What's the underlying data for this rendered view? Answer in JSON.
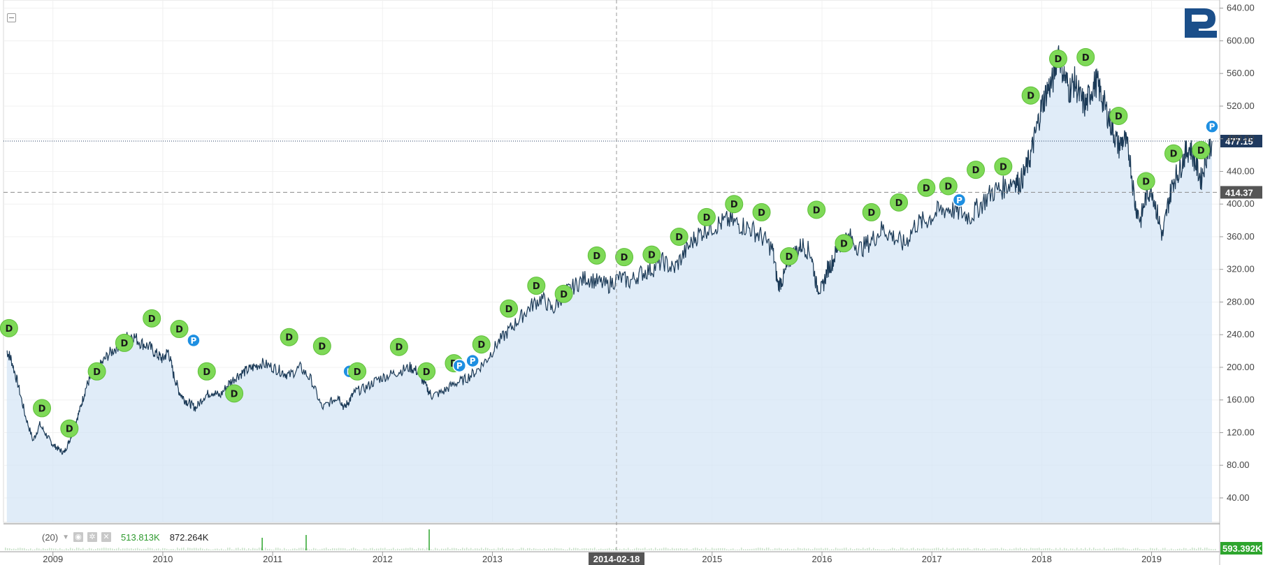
{
  "chart_data": {
    "type": "area",
    "title": "",
    "xlabel": "",
    "ylabel": "",
    "ylim": [
      0,
      650
    ],
    "x_ticks": [
      "2009",
      "2010",
      "2011",
      "2012",
      "2013",
      "2014-02-18",
      "2015",
      "2016",
      "2017",
      "2018",
      "2019"
    ],
    "y_ticks": [
      "40.00",
      "80.00",
      "120.00",
      "160.00",
      "200.00",
      "240.00",
      "280.00",
      "320.00",
      "360.00",
      "400.00",
      "440.00",
      "480.00",
      "520.00",
      "560.00",
      "600.00",
      "640.00"
    ],
    "series": [
      {
        "x": [
          2008.58,
          2008.62,
          2008.68,
          2008.75,
          2008.82,
          2008.88,
          2008.95,
          2009.0,
          2009.05,
          2009.1,
          2009.15,
          2009.2,
          2009.25,
          2009.3,
          2009.35,
          2009.42,
          2009.5,
          2009.58,
          2009.65,
          2009.72,
          2009.8,
          2009.88,
          2009.95,
          2010.0,
          2010.05,
          2010.1,
          2010.15,
          2010.2,
          2010.25,
          2010.3,
          2010.38,
          2010.45,
          2010.52,
          2010.6,
          2010.68,
          2010.75,
          2010.82,
          2010.9,
          2011.0,
          2011.08,
          2011.15,
          2011.25,
          2011.35,
          2011.45,
          2011.55,
          2011.6,
          2011.65,
          2011.7,
          2011.75,
          2011.85,
          2011.95,
          2012.05,
          2012.15,
          2012.25,
          2012.32,
          2012.4,
          2012.45,
          2012.55,
          2012.65,
          2012.75,
          2012.85,
          2012.95,
          2013.05,
          2013.15,
          2013.25,
          2013.35,
          2013.45,
          2013.55,
          2013.65,
          2013.75,
          2013.85,
          2013.95,
          2014.05,
          2014.15,
          2014.25,
          2014.35,
          2014.45,
          2014.55,
          2014.65,
          2014.75,
          2014.85,
          2014.95,
          2015.05,
          2015.15,
          2015.25,
          2015.35,
          2015.45,
          2015.55,
          2015.6,
          2015.65,
          2015.7,
          2015.75,
          2015.82,
          2015.9,
          2015.95,
          2016.0,
          2016.05,
          2016.1,
          2016.15,
          2016.25,
          2016.35,
          2016.45,
          2016.55,
          2016.65,
          2016.75,
          2016.85,
          2016.95,
          2017.05,
          2017.15,
          2017.25,
          2017.35,
          2017.45,
          2017.55,
          2017.65,
          2017.75,
          2017.8,
          2017.85,
          2017.9,
          2017.95,
          2018.0,
          2018.05,
          2018.1,
          2018.15,
          2018.2,
          2018.25,
          2018.3,
          2018.35,
          2018.4,
          2018.45,
          2018.5,
          2018.55,
          2018.6,
          2018.65,
          2018.7,
          2018.75,
          2018.8,
          2018.85,
          2018.9,
          2018.95,
          2019.0,
          2019.05,
          2019.1,
          2019.15,
          2019.2,
          2019.25,
          2019.3,
          2019.35,
          2019.4,
          2019.45,
          2019.5,
          2019.55
        ],
        "y": [
          220,
          210,
          180,
          140,
          110,
          130,
          115,
          105,
          100,
          95,
          110,
          130,
          150,
          175,
          190,
          200,
          215,
          225,
          235,
          240,
          230,
          225,
          215,
          210,
          220,
          190,
          170,
          160,
          155,
          150,
          165,
          170,
          165,
          180,
          190,
          195,
          200,
          205,
          200,
          195,
          190,
          200,
          185,
          150,
          160,
          165,
          150,
          160,
          170,
          175,
          185,
          190,
          195,
          200,
          195,
          175,
          165,
          170,
          180,
          185,
          195,
          210,
          230,
          245,
          260,
          275,
          285,
          270,
          290,
          300,
          310,
          305,
          300,
          310,
          305,
          315,
          320,
          330,
          320,
          340,
          360,
          370,
          375,
          380,
          375,
          370,
          360,
          345,
          300,
          310,
          330,
          340,
          350,
          340,
          300,
          295,
          320,
          330,
          350,
          360,
          345,
          355,
          370,
          360,
          350,
          375,
          380,
          390,
          395,
          390,
          385,
          400,
          415,
          420,
          430,
          425,
          440,
          460,
          490,
          520,
          540,
          550,
          590,
          560,
          540,
          550,
          530,
          520,
          540,
          550,
          530,
          510,
          490,
          470,
          480,
          460,
          400,
          380,
          410,
          420,
          390,
          360,
          400,
          430,
          440,
          460,
          470,
          450,
          430,
          460,
          477.15
        ]
      }
    ],
    "current_price": "477.15",
    "reference_price": "414.37",
    "markers": [
      {
        "x": 2008.6,
        "y": 248,
        "label": "D"
      },
      {
        "x": 2008.9,
        "y": 150,
        "label": "D"
      },
      {
        "x": 2009.15,
        "y": 125,
        "label": "D"
      },
      {
        "x": 2009.4,
        "y": 195,
        "label": "D"
      },
      {
        "x": 2009.65,
        "y": 230,
        "label": "D"
      },
      {
        "x": 2009.9,
        "y": 260,
        "label": "D"
      },
      {
        "x": 2010.15,
        "y": 247,
        "label": "D"
      },
      {
        "x": 2010.28,
        "y": 233,
        "label": "P"
      },
      {
        "x": 2010.4,
        "y": 195,
        "label": "D"
      },
      {
        "x": 2010.65,
        "y": 168,
        "label": "D"
      },
      {
        "x": 2011.15,
        "y": 237,
        "label": "D"
      },
      {
        "x": 2011.45,
        "y": 226,
        "label": "D"
      },
      {
        "x": 2011.7,
        "y": 195,
        "label": "P"
      },
      {
        "x": 2011.77,
        "y": 195,
        "label": "D"
      },
      {
        "x": 2012.15,
        "y": 225,
        "label": "D"
      },
      {
        "x": 2012.4,
        "y": 195,
        "label": "D"
      },
      {
        "x": 2012.65,
        "y": 205,
        "label": "D"
      },
      {
        "x": 2012.7,
        "y": 202,
        "label": "P"
      },
      {
        "x": 2012.82,
        "y": 208,
        "label": "P"
      },
      {
        "x": 2012.9,
        "y": 228,
        "label": "D"
      },
      {
        "x": 2013.15,
        "y": 272,
        "label": "D"
      },
      {
        "x": 2013.4,
        "y": 300,
        "label": "D"
      },
      {
        "x": 2013.65,
        "y": 290,
        "label": "D"
      },
      {
        "x": 2013.95,
        "y": 337,
        "label": "D"
      },
      {
        "x": 2014.2,
        "y": 335,
        "label": "D"
      },
      {
        "x": 2014.45,
        "y": 338,
        "label": "D"
      },
      {
        "x": 2014.7,
        "y": 360,
        "label": "D"
      },
      {
        "x": 2014.95,
        "y": 384,
        "label": "D"
      },
      {
        "x": 2015.2,
        "y": 400,
        "label": "D"
      },
      {
        "x": 2015.45,
        "y": 390,
        "label": "D"
      },
      {
        "x": 2015.7,
        "y": 336,
        "label": "D"
      },
      {
        "x": 2015.95,
        "y": 393,
        "label": "D"
      },
      {
        "x": 2016.2,
        "y": 352,
        "label": "D"
      },
      {
        "x": 2016.45,
        "y": 390,
        "label": "D"
      },
      {
        "x": 2016.7,
        "y": 402,
        "label": "D"
      },
      {
        "x": 2016.95,
        "y": 420,
        "label": "D"
      },
      {
        "x": 2017.15,
        "y": 422,
        "label": "D"
      },
      {
        "x": 2017.25,
        "y": 405,
        "label": "P"
      },
      {
        "x": 2017.4,
        "y": 442,
        "label": "D"
      },
      {
        "x": 2017.65,
        "y": 446,
        "label": "D"
      },
      {
        "x": 2017.9,
        "y": 533,
        "label": "D"
      },
      {
        "x": 2018.15,
        "y": 578,
        "label": "D"
      },
      {
        "x": 2018.4,
        "y": 580,
        "label": "D"
      },
      {
        "x": 2018.7,
        "y": 508,
        "label": "D"
      },
      {
        "x": 2018.95,
        "y": 428,
        "label": "D"
      },
      {
        "x": 2019.2,
        "y": 462,
        "label": "D"
      },
      {
        "x": 2019.45,
        "y": 466,
        "label": "D"
      },
      {
        "x": 2019.55,
        "y": 495,
        "label": "P"
      }
    ],
    "volume": {
      "period": "(20)",
      "ma": "513.813K",
      "value": "872.264K",
      "last": "593.392K"
    },
    "grid": true
  },
  "colors": {
    "line": "#1b3a57",
    "area": "#d6e6f6",
    "marker_d": "#7ed957",
    "marker_p": "#1e8fe1",
    "price_label": "#1f3a5f",
    "ref_label": "#555555",
    "volume_label": "#2ea52e"
  }
}
